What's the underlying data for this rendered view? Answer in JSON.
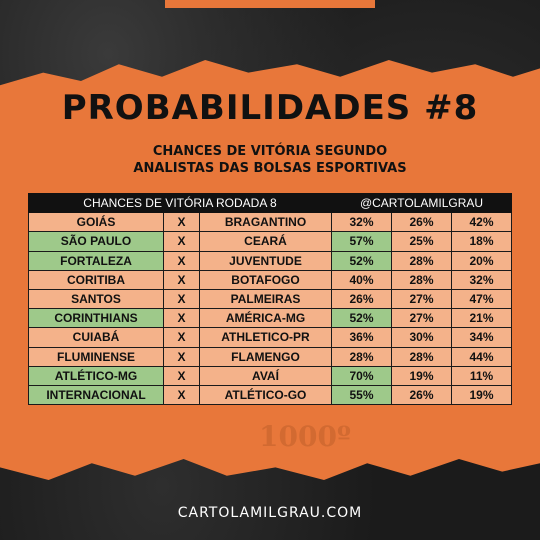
{
  "title": "PROBABILIDADES #8",
  "subtitle_line1": "CHANCES DE VITÓRIA SEGUNDO",
  "subtitle_line2": "ANALISTAS DAS BOLSAS ESPORTIVAS",
  "table_header_left": "CHANCES DE VITÓRIA RODADA 8",
  "table_header_right": "@CARTOLAMILGRAU",
  "separator": "X",
  "watermark": "1000º",
  "footer": "CARTOLAMILGRAU.COM",
  "colors": {
    "accent": "#e8773a",
    "win": "#9ec98a",
    "lose": "#f4b28a"
  },
  "rows": [
    {
      "home": "GOIÁS",
      "away": "BRAGANTINO",
      "p_home": "32%",
      "p_draw": "26%",
      "p_away": "42%",
      "home_fav": false,
      "away_fav": false
    },
    {
      "home": "SÃO PAULO",
      "away": "CEARÁ",
      "p_home": "57%",
      "p_draw": "25%",
      "p_away": "18%",
      "home_fav": true,
      "away_fav": false
    },
    {
      "home": "FORTALEZA",
      "away": "JUVENTUDE",
      "p_home": "52%",
      "p_draw": "28%",
      "p_away": "20%",
      "home_fav": true,
      "away_fav": false
    },
    {
      "home": "CORITIBA",
      "away": "BOTAFOGO",
      "p_home": "40%",
      "p_draw": "28%",
      "p_away": "32%",
      "home_fav": false,
      "away_fav": false
    },
    {
      "home": "SANTOS",
      "away": "PALMEIRAS",
      "p_home": "26%",
      "p_draw": "27%",
      "p_away": "47%",
      "home_fav": false,
      "away_fav": false
    },
    {
      "home": "CORINTHIANS",
      "away": "AMÉRICA-MG",
      "p_home": "52%",
      "p_draw": "27%",
      "p_away": "21%",
      "home_fav": true,
      "away_fav": false
    },
    {
      "home": "CUIABÁ",
      "away": "ATHLETICO-PR",
      "p_home": "36%",
      "p_draw": "30%",
      "p_away": "34%",
      "home_fav": false,
      "away_fav": false
    },
    {
      "home": "FLUMINENSE",
      "away": "FLAMENGO",
      "p_home": "28%",
      "p_draw": "28%",
      "p_away": "44%",
      "home_fav": false,
      "away_fav": false
    },
    {
      "home": "ATLÉTICO-MG",
      "away": "AVAÍ",
      "p_home": "70%",
      "p_draw": "19%",
      "p_away": "11%",
      "home_fav": true,
      "away_fav": false
    },
    {
      "home": "INTERNACIONAL",
      "away": "ATLÉTICO-GO",
      "p_home": "55%",
      "p_draw": "26%",
      "p_away": "19%",
      "home_fav": true,
      "away_fav": false
    }
  ]
}
